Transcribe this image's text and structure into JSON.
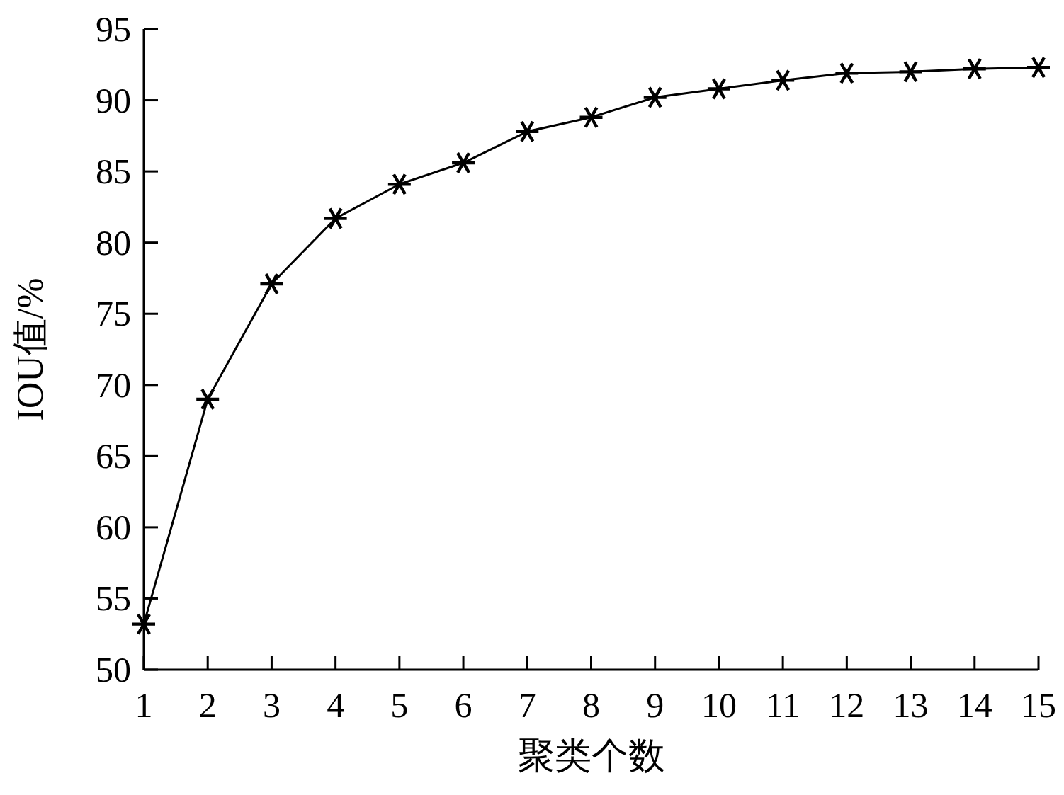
{
  "chart_data": {
    "type": "line",
    "xlabel": "聚类个数",
    "ylabel": "IOU值/%",
    "x": [
      1,
      2,
      3,
      4,
      5,
      6,
      7,
      8,
      9,
      10,
      11,
      12,
      13,
      14,
      15
    ],
    "series": [
      {
        "color": "#000000",
        "values": [
          53.2,
          69.0,
          77.1,
          81.7,
          84.1,
          85.6,
          87.8,
          88.8,
          90.2,
          90.8,
          91.4,
          91.9,
          92.0,
          92.2,
          92.3
        ]
      }
    ],
    "xlim": [
      1,
      15
    ],
    "xticks": [
      1,
      2,
      3,
      4,
      5,
      6,
      7,
      8,
      9,
      10,
      11,
      12,
      13,
      14,
      15
    ],
    "ylim": [
      50,
      95
    ],
    "yticks": [
      50,
      55,
      60,
      65,
      70,
      75,
      80,
      85,
      90,
      95
    ],
    "grid": false,
    "marker": "star",
    "line_style": "solid"
  }
}
